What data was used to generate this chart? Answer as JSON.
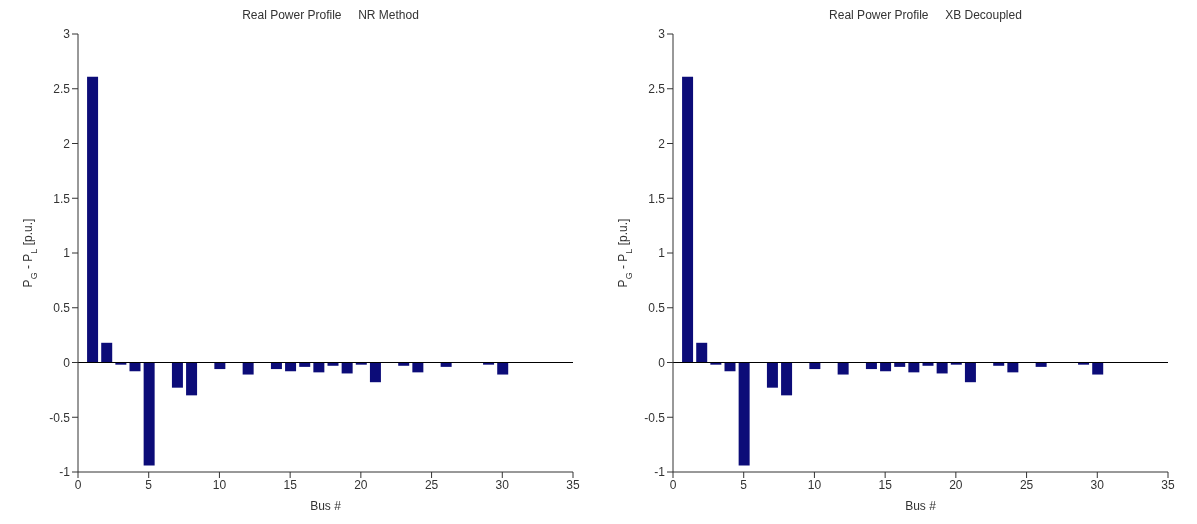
{
  "chart_data": [
    {
      "type": "bar",
      "title": "Real Power Profile     NR Method",
      "xlabel": "Bus #",
      "ylabel": "P$_{G}$ - P$_{L}$ [p.u.]",
      "x": [
        1,
        2,
        3,
        4,
        5,
        6,
        7,
        8,
        9,
        10,
        11,
        12,
        13,
        14,
        15,
        16,
        17,
        18,
        19,
        20,
        21,
        22,
        23,
        24,
        25,
        26,
        27,
        28,
        29,
        30
      ],
      "values": [
        2.61,
        0.18,
        -0.02,
        -0.08,
        -0.94,
        0,
        -0.23,
        -0.3,
        0,
        -0.06,
        0,
        -0.11,
        0,
        -0.06,
        -0.08,
        -0.04,
        -0.09,
        -0.03,
        -0.1,
        -0.02,
        -0.18,
        0,
        -0.03,
        -0.09,
        0,
        -0.04,
        0,
        0,
        -0.02,
        -0.11
      ],
      "color": "#0c0c78",
      "xlim": [
        0,
        35
      ],
      "xticks": [
        0,
        5,
        10,
        15,
        20,
        25,
        30,
        35
      ],
      "ylim": [
        -1,
        3
      ],
      "yticks": [
        -1,
        -0.5,
        0,
        0.5,
        1,
        1.5,
        2,
        2.5,
        3
      ],
      "ref_lines": [
        {
          "axis": "y",
          "value": 0,
          "color": "#000000"
        }
      ]
    },
    {
      "type": "bar",
      "title": "Real Power Profile     XB Decoupled",
      "xlabel": "Bus #",
      "ylabel": "P$_{G}$ - P$_{L}$ [p.u.]",
      "x": [
        1,
        2,
        3,
        4,
        5,
        6,
        7,
        8,
        9,
        10,
        11,
        12,
        13,
        14,
        15,
        16,
        17,
        18,
        19,
        20,
        21,
        22,
        23,
        24,
        25,
        26,
        27,
        28,
        29,
        30
      ],
      "values": [
        2.61,
        0.18,
        -0.02,
        -0.08,
        -0.94,
        0,
        -0.23,
        -0.3,
        0,
        -0.06,
        0,
        -0.11,
        0,
        -0.06,
        -0.08,
        -0.04,
        -0.09,
        -0.03,
        -0.1,
        -0.02,
        -0.18,
        0,
        -0.03,
        -0.09,
        0,
        -0.04,
        0,
        0,
        -0.02,
        -0.11
      ],
      "color": "#0c0c78",
      "xlim": [
        0,
        35
      ],
      "xticks": [
        0,
        5,
        10,
        15,
        20,
        25,
        30,
        35
      ],
      "ylim": [
        -1,
        3
      ],
      "yticks": [
        -1,
        -0.5,
        0,
        0.5,
        1,
        1.5,
        2,
        2.5,
        3
      ],
      "ref_lines": [
        {
          "axis": "y",
          "value": 0,
          "color": "#000000"
        }
      ]
    }
  ]
}
